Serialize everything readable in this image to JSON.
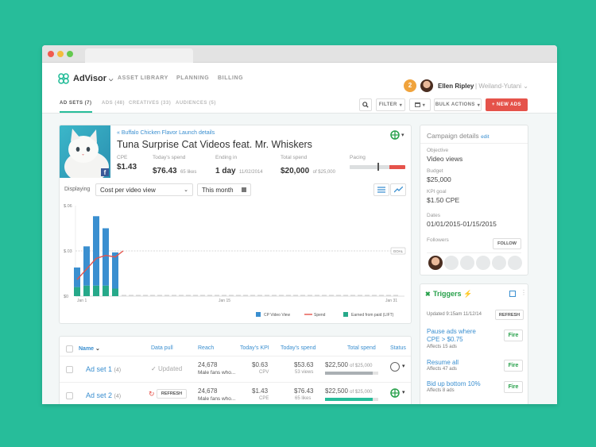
{
  "app": {
    "brand": "AdVisor",
    "nav": [
      "ASSET LIBRARY",
      "PLANNING",
      "BILLING"
    ],
    "notifications": "2",
    "user_name": "Ellen Ripley",
    "user_org": "Weiland-Yutani",
    "colors": {
      "accent": "#27bd9a",
      "link": "#3a8fd0",
      "danger": "#e5534b",
      "notify": "#f0a33c"
    }
  },
  "subnav": {
    "tabs": [
      "AD SETS (7)",
      "ADS (48)",
      "CREATIVES (33)",
      "AUDIENCES (5)"
    ],
    "filter_label": "FILTER",
    "bulk_label": "BULK ACTIONS",
    "new_ads_label": "+ NEW ADS"
  },
  "campaign": {
    "breadcrumb": "« Buffalo Chicken Flavor Launch details",
    "title": "Tuna Surprise Cat Videos feat. Mr. Whiskers",
    "cpe_label": "CPE",
    "cpe_value": "$1.43",
    "spend_label": "Today's spend",
    "spend_value": "$76.43",
    "spend_sub": "65 likes",
    "ending_label": "Ending in",
    "ending_value": "1 day",
    "ending_sub": "11/02/2014",
    "total_label": "Total spend",
    "total_value": "$20,000",
    "total_sub": "of $25,000",
    "pacing_label": "Pacing",
    "pacing_fraction": 0.8
  },
  "controls": {
    "displaying_label": "Displaying",
    "metric": "Cost per video view",
    "range": "This month"
  },
  "chart_data": {
    "type": "bar",
    "y_ticks": [
      "$.06",
      "$.03",
      "$0"
    ],
    "x_ticks": [
      "Jan 1",
      "Jan 15",
      "Jan 31"
    ],
    "goal_label": "GOAL",
    "goal_value": 0.03,
    "ylim": [
      0,
      0.06
    ],
    "series": [
      {
        "name": "CP Video View",
        "values": [
          0.013,
          0.026,
          0.046,
          0.038,
          0.024
        ],
        "color": "#3a8fd0"
      },
      {
        "name": "Earned from paid (LIFT)",
        "values": [
          0.006,
          0.007,
          0.007,
          0.007,
          0.005
        ],
        "color": "#27a98a"
      },
      {
        "name": "Spend",
        "values": [
          0.011,
          0.018,
          0.025,
          0.027,
          0.026
        ],
        "color": "#e5534b"
      }
    ]
  },
  "table": {
    "headers": [
      "Name",
      "Data pull",
      "Reach",
      "Today's KPI",
      "Today's spend",
      "Total spend",
      "Status"
    ],
    "rows": [
      {
        "name": "Ad set 1",
        "count": "(4)",
        "data_pull": "Updated",
        "reach": "24,678",
        "reach_sub": "Male fans who...",
        "kpi": "$0.63",
        "kpi_sub": "CPV",
        "spend": "$53.63",
        "spend_sub": "53 views",
        "total": "$22,500",
        "total_sub": "of $25,000",
        "total_fraction": 0.9
      },
      {
        "name": "Ad set 2",
        "count": "(4)",
        "data_pull": "REFRESH",
        "reach": "24,678",
        "reach_sub": "Male fans who...",
        "kpi": "$1.43",
        "kpi_sub": "CPE",
        "spend": "$76.43",
        "spend_sub": "65 likes",
        "total": "$22,500",
        "total_sub": "of $25,000",
        "total_fraction": 0.9
      }
    ]
  },
  "details": {
    "title": "Campaign details",
    "edit": "edit",
    "fields": [
      {
        "label": "Objective",
        "value": "Video views"
      },
      {
        "label": "Budget",
        "value": "$25,000"
      },
      {
        "label": "KPI goal",
        "value": "$1.50 CPE"
      },
      {
        "label": "Dates",
        "value": "01/01/2015-01/15/2015"
      }
    ],
    "followers_label": "Followers",
    "follow_button": "FOLLOW"
  },
  "triggers": {
    "title": "Triggers",
    "updated": "Updated 9:15am 11/12/14",
    "refresh": "REFRESH",
    "items": [
      {
        "title": "Pause ads where CPE > $0.75",
        "affects": "Affects 15 ads",
        "button": "Fire"
      },
      {
        "title": "Resume all",
        "affects": "Affects 47 ads",
        "button": "Fire"
      },
      {
        "title": "Bid up bottom 10%",
        "affects": "Affects 8 ads",
        "button": "Fire"
      }
    ]
  }
}
